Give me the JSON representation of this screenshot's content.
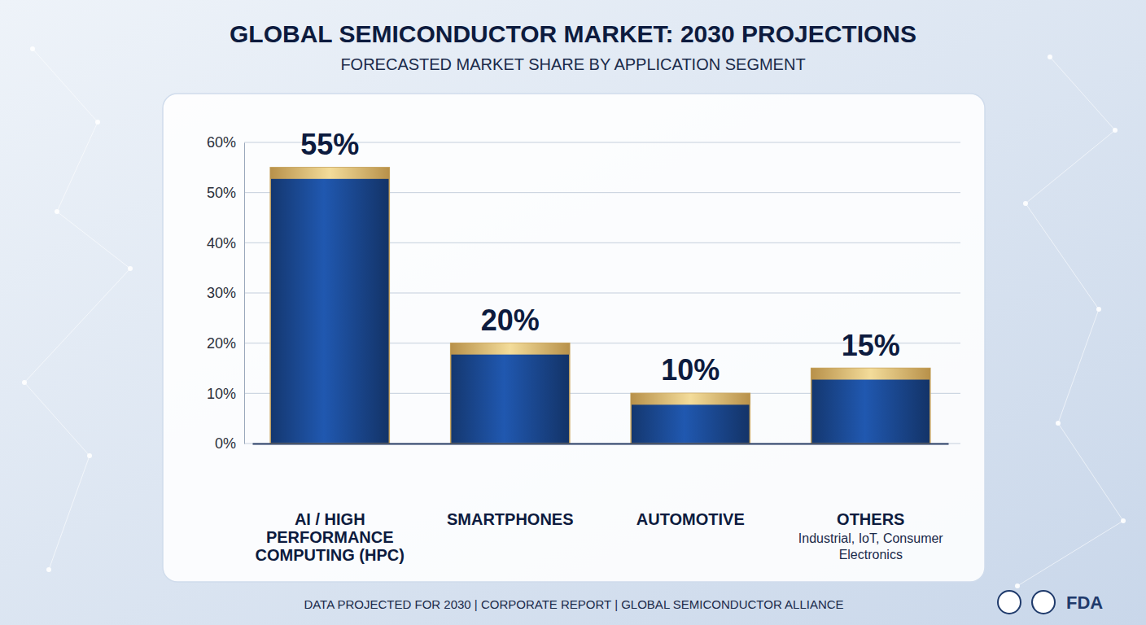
{
  "chart_data": {
    "type": "bar",
    "title": "GLOBAL SEMICONDUCTOR MARKET: 2030 PROJECTIONS",
    "subtitle": "FORECASTED MARKET SHARE BY APPLICATION SEGMENT",
    "categories": [
      "AI / HIGH PERFORMANCE COMPUTING (HPC)",
      "SMARTPHONES",
      "AUTOMOTIVE",
      "OTHERS"
    ],
    "values": [
      55,
      20,
      10,
      15
    ],
    "value_labels": [
      "55%",
      "20%",
      "10%",
      "15%"
    ],
    "color": "#1d4f9e",
    "ylim": [
      0,
      60
    ],
    "yticks": [
      {
        "value": 0,
        "label": "0%"
      },
      {
        "value": 10,
        "label": "10%"
      },
      {
        "value": 20,
        "label": "20%"
      },
      {
        "value": 30,
        "label": "30%"
      },
      {
        "value": 40,
        "label": "40%"
      },
      {
        "value": 50,
        "label": "50%"
      },
      {
        "value": 60,
        "label": "60%"
      }
    ],
    "grid": true,
    "data_labels": true,
    "annotations": [
      "Industrial, IoT, Consumer Electronics",
      "FDA"
    ],
    "footer": "DATA PROJECTED FOR 2030 | CORPORATE REPORT | GLOBAL SEMICONDUCTOR ALLIANCE"
  }
}
